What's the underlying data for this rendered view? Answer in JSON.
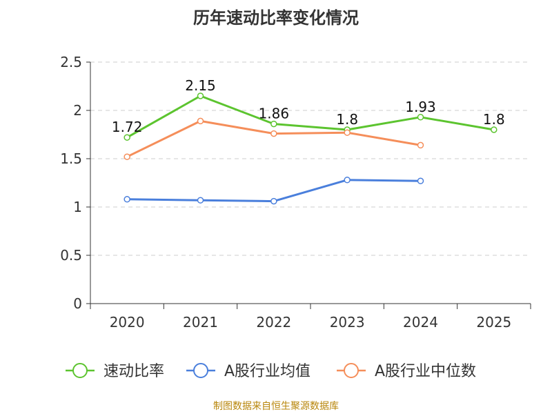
{
  "chart_data": {
    "type": "line",
    "title": "历年速动比率变化情况",
    "categories": [
      "2020",
      "2021",
      "2022",
      "2023",
      "2024",
      "2025"
    ],
    "y_ticks": [
      "0",
      "0.5",
      "1",
      "1.5",
      "2",
      "2.5"
    ],
    "ylim": [
      0,
      2.5
    ],
    "grid": true,
    "legend_position": "bottom",
    "series": [
      {
        "name": "速动比率",
        "color": "#5cc42f",
        "values": [
          1.72,
          2.15,
          1.86,
          1.8,
          1.93,
          1.8
        ],
        "labels": [
          "1.72",
          "2.15",
          "1.86",
          "1.8",
          "1.93",
          "1.8"
        ]
      },
      {
        "name": "A股行业均值",
        "color": "#4a7fdc",
        "values": [
          1.08,
          1.07,
          1.06,
          1.28,
          1.27,
          null
        ]
      },
      {
        "name": "A股行业中位数",
        "color": "#f58e5a",
        "values": [
          1.52,
          1.89,
          1.76,
          1.77,
          1.64,
          null
        ]
      }
    ]
  },
  "source_note": "制图数据来自恒生聚源数据库"
}
